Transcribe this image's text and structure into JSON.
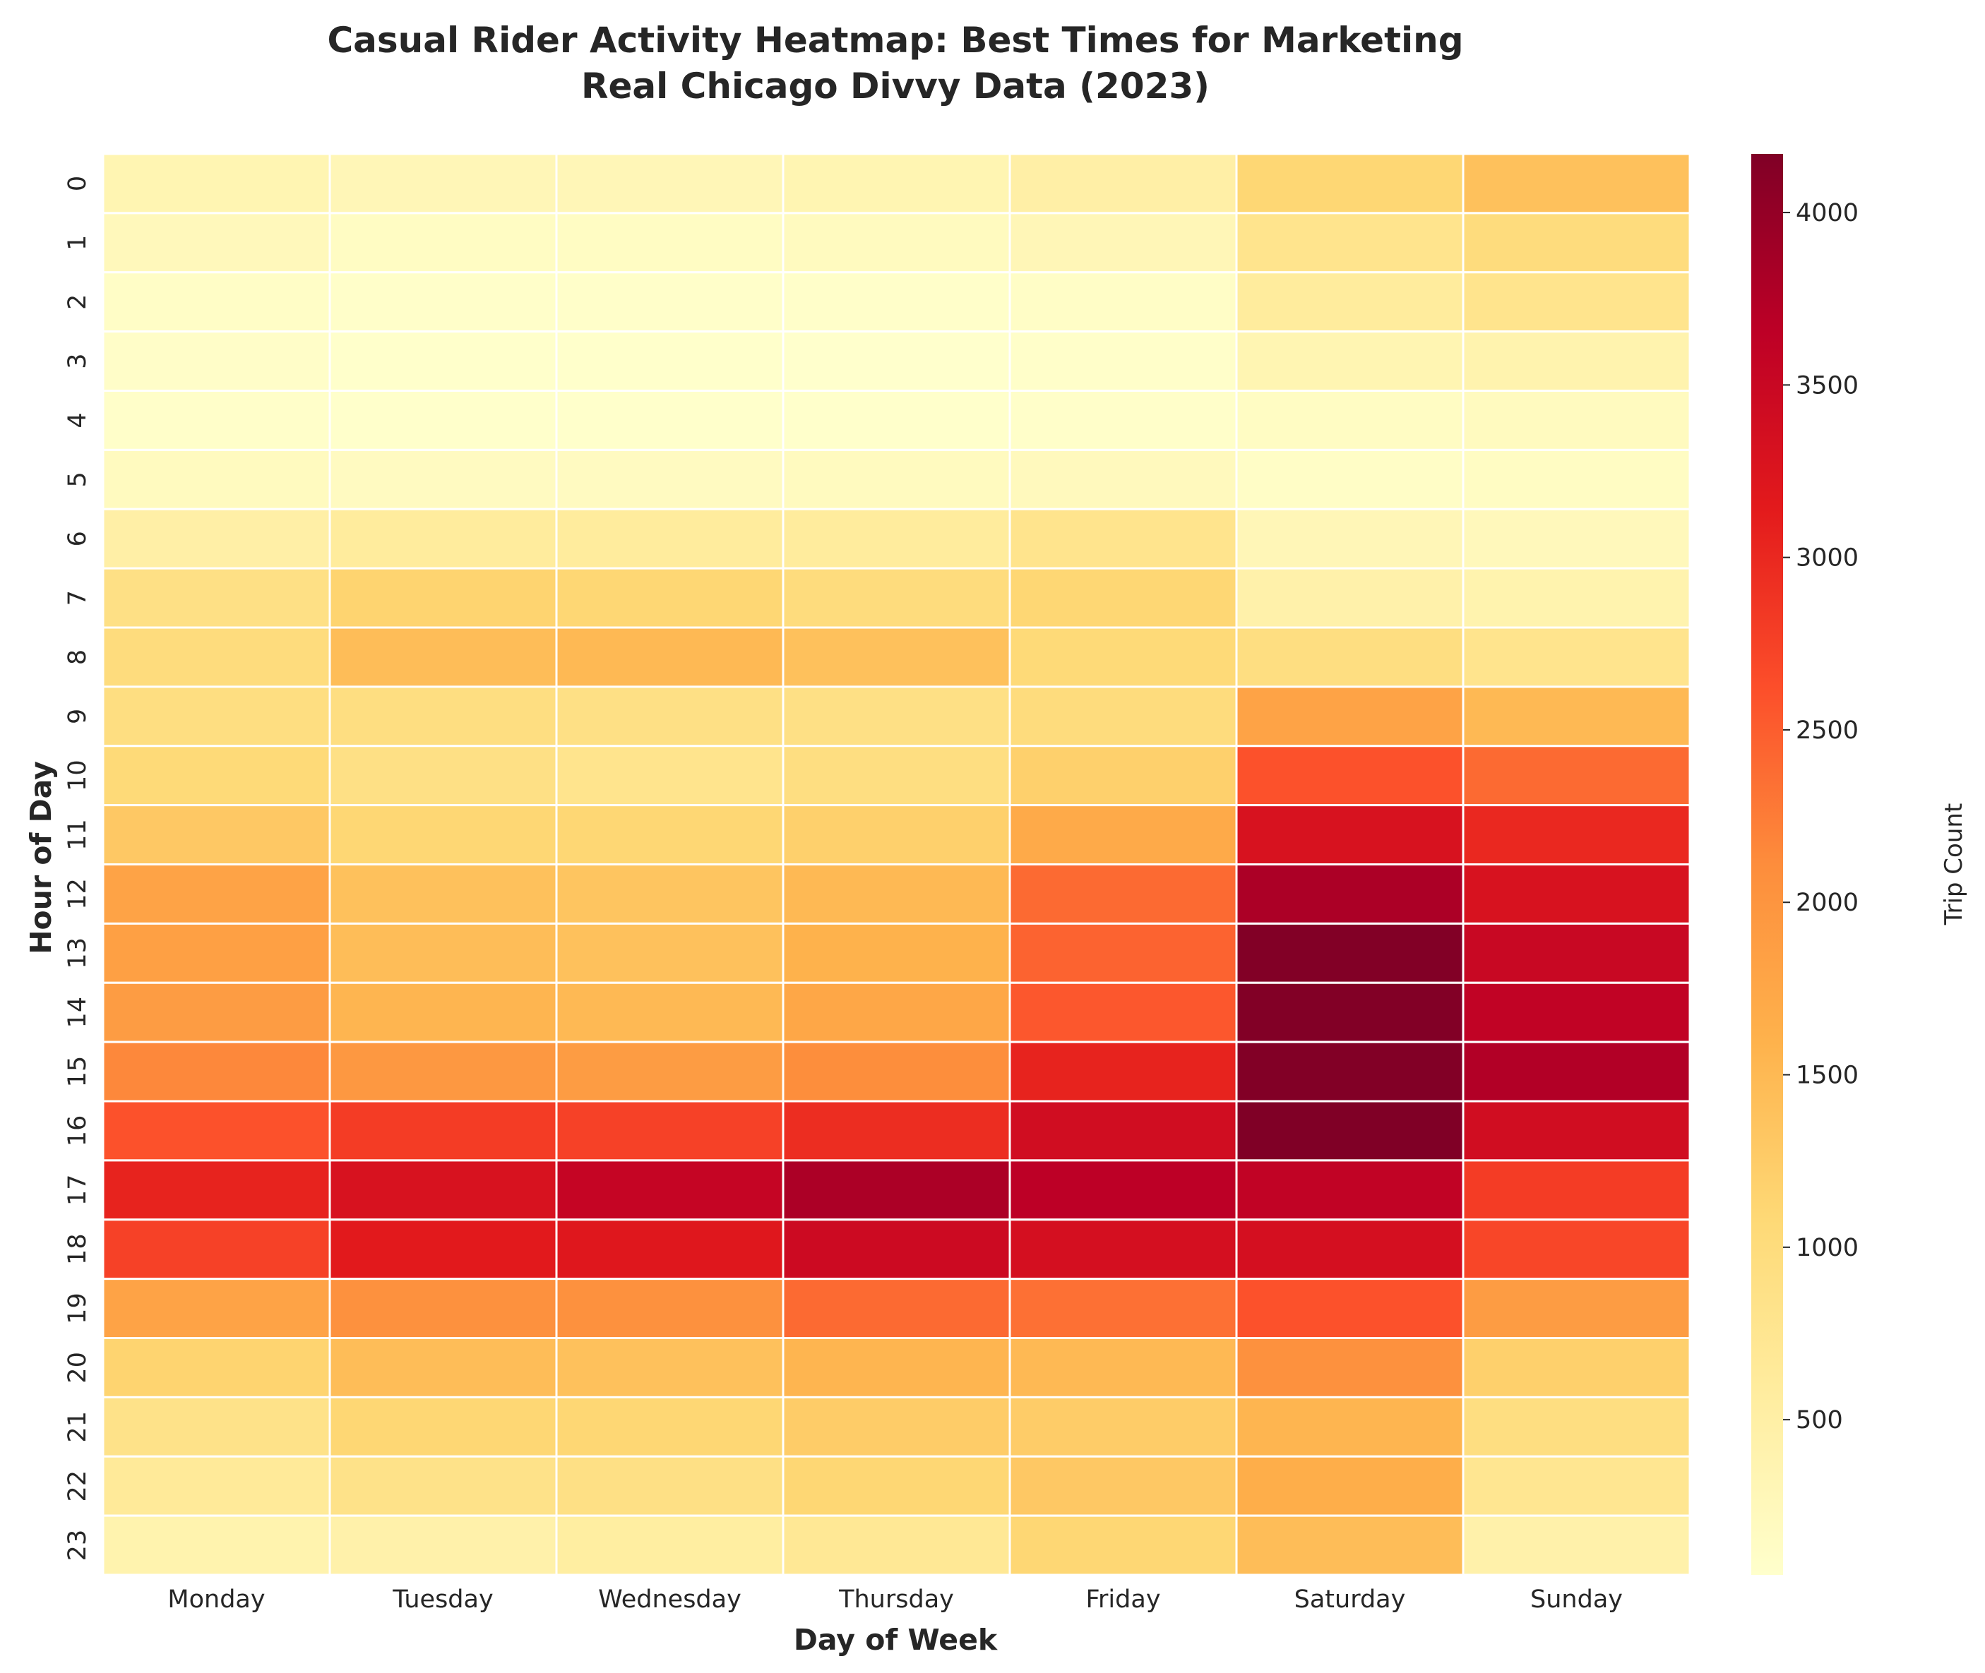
{
  "chart_data": {
    "type": "heatmap",
    "title_line1": "Casual Rider Activity Heatmap: Best Times for Marketing",
    "title_line2": "Real Chicago Divvy Data (2023)",
    "xlabel": "Day of Week",
    "ylabel": "Hour of Day",
    "colorbar_label": "Trip Count",
    "colormap": "YlOrRd",
    "vmin": 50,
    "vmax": 4170,
    "colorbar_ticks": [
      500,
      1000,
      1500,
      2000,
      2500,
      3000,
      3500,
      4000
    ],
    "x_categories": [
      "Monday",
      "Tuesday",
      "Wednesday",
      "Thursday",
      "Friday",
      "Saturday",
      "Sunday"
    ],
    "y_categories": [
      "0",
      "1",
      "2",
      "3",
      "4",
      "5",
      "6",
      "7",
      "8",
      "9",
      "10",
      "11",
      "12",
      "13",
      "14",
      "15",
      "16",
      "17",
      "18",
      "19",
      "20",
      "21",
      "22",
      "23"
    ],
    "values": [
      [
        350,
        300,
        300,
        350,
        500,
        1100,
        1400
      ],
      [
        250,
        150,
        150,
        200,
        300,
        800,
        1000
      ],
      [
        120,
        80,
        80,
        80,
        120,
        600,
        800
      ],
      [
        100,
        60,
        60,
        50,
        80,
        350,
        400
      ],
      [
        80,
        60,
        60,
        60,
        80,
        150,
        200
      ],
      [
        200,
        180,
        180,
        200,
        220,
        120,
        150
      ],
      [
        500,
        600,
        600,
        600,
        800,
        300,
        250
      ],
      [
        900,
        1150,
        1100,
        1000,
        1100,
        450,
        400
      ],
      [
        1000,
        1450,
        1500,
        1400,
        1050,
        950,
        800
      ],
      [
        950,
        950,
        900,
        900,
        1000,
        1800,
        1500
      ],
      [
        1050,
        900,
        800,
        950,
        1200,
        2600,
        2400
      ],
      [
        1300,
        1100,
        1100,
        1200,
        1700,
        3300,
        3000
      ],
      [
        1800,
        1400,
        1350,
        1500,
        2400,
        3800,
        3300
      ],
      [
        1850,
        1450,
        1400,
        1600,
        2450,
        4150,
        3500
      ],
      [
        1900,
        1550,
        1500,
        1750,
        2550,
        4150,
        3600
      ],
      [
        2150,
        1950,
        1900,
        2100,
        3050,
        4150,
        3750
      ],
      [
        2600,
        2800,
        2750,
        2950,
        3400,
        4170,
        3400
      ],
      [
        3050,
        3300,
        3550,
        3800,
        3650,
        3600,
        2800
      ],
      [
        2750,
        3150,
        3200,
        3450,
        3350,
        3350,
        2700
      ],
      [
        1800,
        2050,
        2050,
        2400,
        2350,
        2600,
        1900
      ],
      [
        1150,
        1450,
        1400,
        1550,
        1500,
        2050,
        1200
      ],
      [
        850,
        1100,
        1100,
        1250,
        1250,
        1550,
        950
      ],
      [
        650,
        850,
        900,
        1100,
        1300,
        1650,
        750
      ],
      [
        400,
        450,
        550,
        700,
        1100,
        1450,
        450
      ]
    ]
  }
}
